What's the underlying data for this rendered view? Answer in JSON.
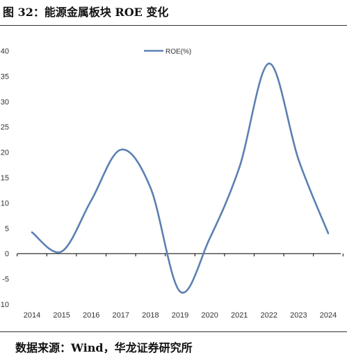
{
  "figure": {
    "title": "图 32：能源金属板块 ROE 变化",
    "source": "数据来源：Wind，华龙证券研究所"
  },
  "chart_data": {
    "type": "line",
    "title": "",
    "xlabel": "",
    "ylabel": "",
    "categories": [
      "2014",
      "2015",
      "2016",
      "2017",
      "2018",
      "2019",
      "2020",
      "2021",
      "2022",
      "2023",
      "2024"
    ],
    "yticks": [
      "40",
      "35",
      "30",
      "25",
      "20",
      "15",
      "10",
      "5",
      "0",
      "-5",
      "-10"
    ],
    "ylim": [
      -10,
      40
    ],
    "series": [
      {
        "name": "ROE(%)",
        "values": [
          4.2,
          0.4,
          10.5,
          20.5,
          13.0,
          -7.5,
          3.0,
          17.0,
          37.5,
          18.5,
          4.0
        ],
        "color": "#5b80b2"
      }
    ],
    "legend": "top-center",
    "grid": false,
    "smooth": true,
    "line_color": "#5b80b2"
  }
}
